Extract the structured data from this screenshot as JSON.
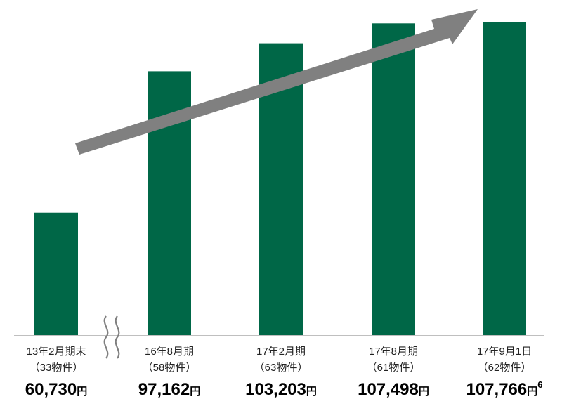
{
  "chart_data": {
    "type": "bar",
    "title": "",
    "xlabel": "",
    "ylabel": "",
    "categories": [
      "13年2月期末",
      "16年8月期",
      "17年2月期",
      "17年8月期",
      "17年9月1日"
    ],
    "property_counts": [
      "（33物件）",
      "（58物件）",
      "（63物件）",
      "（61物件）",
      "（62物件）"
    ],
    "values": [
      60730,
      97162,
      103203,
      107498,
      107766
    ],
    "value_labels": [
      "60,730",
      "97,162",
      "103,203",
      "107,498",
      "107,766"
    ],
    "unit": "円",
    "footnote_marker": "6",
    "ylim": [
      0,
      120000
    ],
    "axis_break_between": [
      0,
      1
    ],
    "trend_arrow": true,
    "grid": false,
    "colors": {
      "bar": "#006747",
      "arrow": "#808080",
      "baseline": "#bfbfbf",
      "break_mark": "#7f7f7f"
    }
  }
}
